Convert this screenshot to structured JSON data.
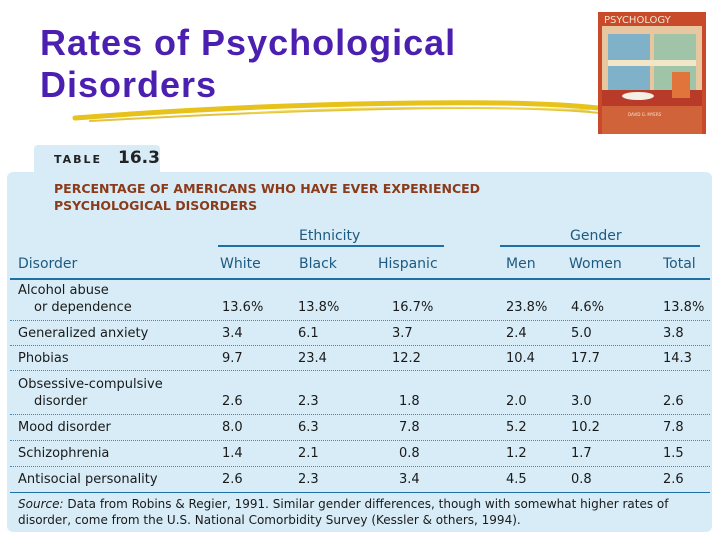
{
  "slide": {
    "title_line1": "Rates of Psychological",
    "title_line2": "Disorders",
    "title_color": "#4b1fb0",
    "underline_color": "#e6c21a"
  },
  "book_cover": {
    "title": "PSYCHOLOGY",
    "author": "DAVID G. MYERS"
  },
  "table": {
    "label": "TABLE",
    "number": "16.3",
    "caption_line1": "PERCENTAGE OF AMERICANS WHO HAVE EVER EXPERIENCED",
    "caption_line2": "PSYCHOLOGICAL DISORDERS",
    "group_ethnicity": "Ethnicity",
    "group_gender": "Gender",
    "columns": [
      "Disorder",
      "White",
      "Black",
      "Hispanic",
      "Men",
      "Women",
      "Total"
    ],
    "rows": [
      {
        "label1": "Alcohol abuse",
        "label2": "or dependence",
        "white": "13.6%",
        "black": "13.8%",
        "hispanic": "16.7%",
        "men": "23.8%",
        "women": "4.6%",
        "total": "13.8%"
      },
      {
        "label1": "Generalized anxiety",
        "white": "3.4",
        "black": "6.1",
        "hispanic": "3.7",
        "men": "2.4",
        "women": "5.0",
        "total": "3.8"
      },
      {
        "label1": "Phobias",
        "white": "9.7",
        "black": "23.4",
        "hispanic": "12.2",
        "men": "10.4",
        "women": "17.7",
        "total": "14.3"
      },
      {
        "label1": "Obsessive-compulsive",
        "label2": "disorder",
        "white": "2.6",
        "black": "2.3",
        "hispanic": "1.8",
        "men": "2.0",
        "women": "3.0",
        "total": "2.6"
      },
      {
        "label1": "Mood disorder",
        "white": "8.0",
        "black": "6.3",
        "hispanic": "7.8",
        "men": "5.2",
        "women": "10.2",
        "total": "7.8"
      },
      {
        "label1": "Schizophrenia",
        "white": "1.4",
        "black": "2.1",
        "hispanic": "0.8",
        "men": "1.2",
        "women": "1.7",
        "total": "1.5"
      },
      {
        "label1": "Antisocial personality",
        "white": "2.6",
        "black": "2.3",
        "hispanic": "3.4",
        "men": "4.5",
        "women": "0.8",
        "total": "2.6"
      }
    ],
    "source_label": "Source:",
    "source_text": "Data from Robins & Regier, 1991. Similar gender differences, though with somewhat higher rates of disorder, come from the U.S. National Comorbidity Survey (Kessler & others, 1994)."
  }
}
